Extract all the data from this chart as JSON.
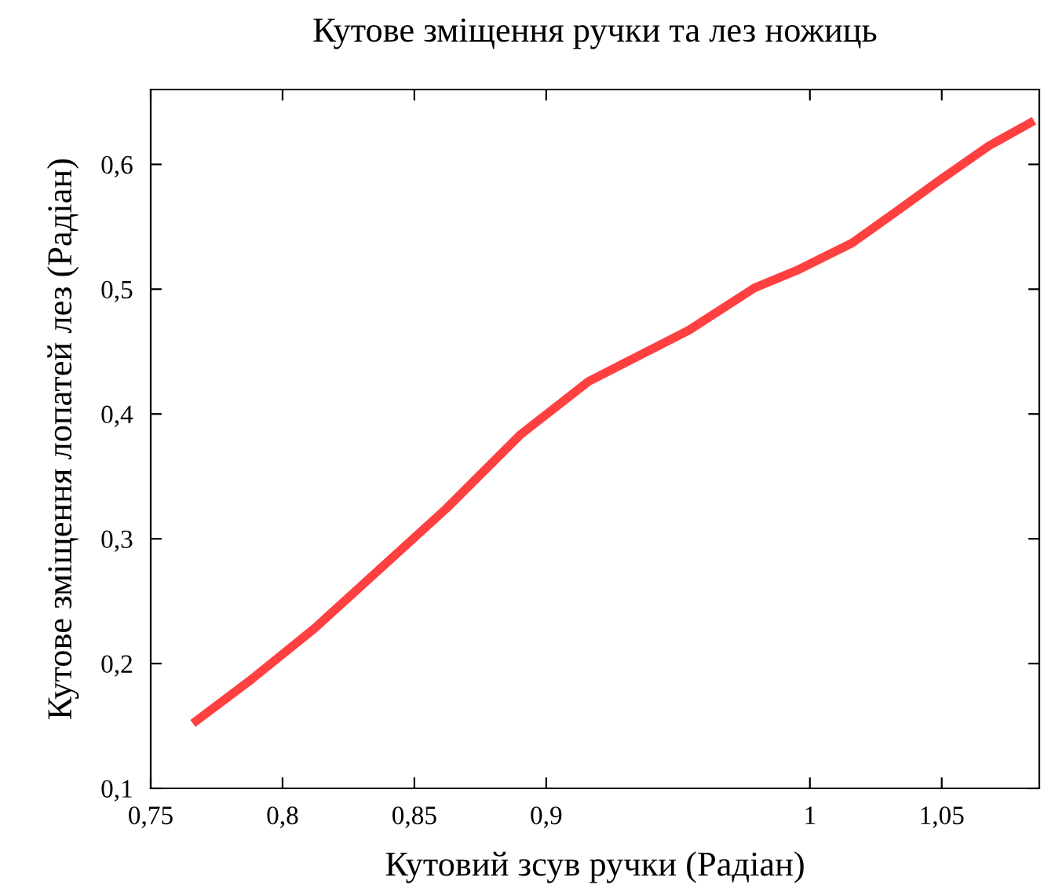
{
  "chart_data": {
    "type": "line",
    "title": "Кутове зміщення ручки та лез ножиць",
    "xlabel": "Кутовий зсув ручки (Радіан)",
    "ylabel": "Кутове зміщення лопатей лез (Радіан)",
    "series": [
      {
        "color": "#ff4040",
        "x": [
          0.766,
          0.788,
          0.812,
          0.836,
          0.862,
          0.89,
          0.916,
          0.954,
          0.979,
          0.995,
          1.016,
          1.032,
          1.049,
          1.068,
          1.085
        ],
        "values": [
          0.152,
          0.187,
          0.228,
          0.274,
          0.324,
          0.383,
          0.426,
          0.467,
          0.501,
          0.515,
          0.537,
          0.561,
          0.587,
          0.615,
          0.635
        ]
      }
    ],
    "xlim": [
      0.75,
      1.087
    ],
    "ylim": [
      0.1,
      0.66
    ],
    "xticks": [
      {
        "value": 0.75,
        "label": "0,75"
      },
      {
        "value": 0.8,
        "label": "0,8"
      },
      {
        "value": 0.85,
        "label": "0,85"
      },
      {
        "value": 0.9,
        "label": "0,9"
      },
      {
        "value": 1,
        "label": "1"
      },
      {
        "value": 1.05,
        "label": "1,05"
      }
    ],
    "yticks": [
      {
        "value": 0.1,
        "label": "0,1"
      },
      {
        "value": 0.2,
        "label": "0,2"
      },
      {
        "value": 0.3,
        "label": "0,3"
      },
      {
        "value": 0.4,
        "label": "0,4"
      },
      {
        "value": 0.5,
        "label": "0,5"
      },
      {
        "value": 0.6,
        "label": "0,6"
      }
    ],
    "grid": false,
    "legend": false,
    "marker": "none",
    "line_style": "solid"
  }
}
